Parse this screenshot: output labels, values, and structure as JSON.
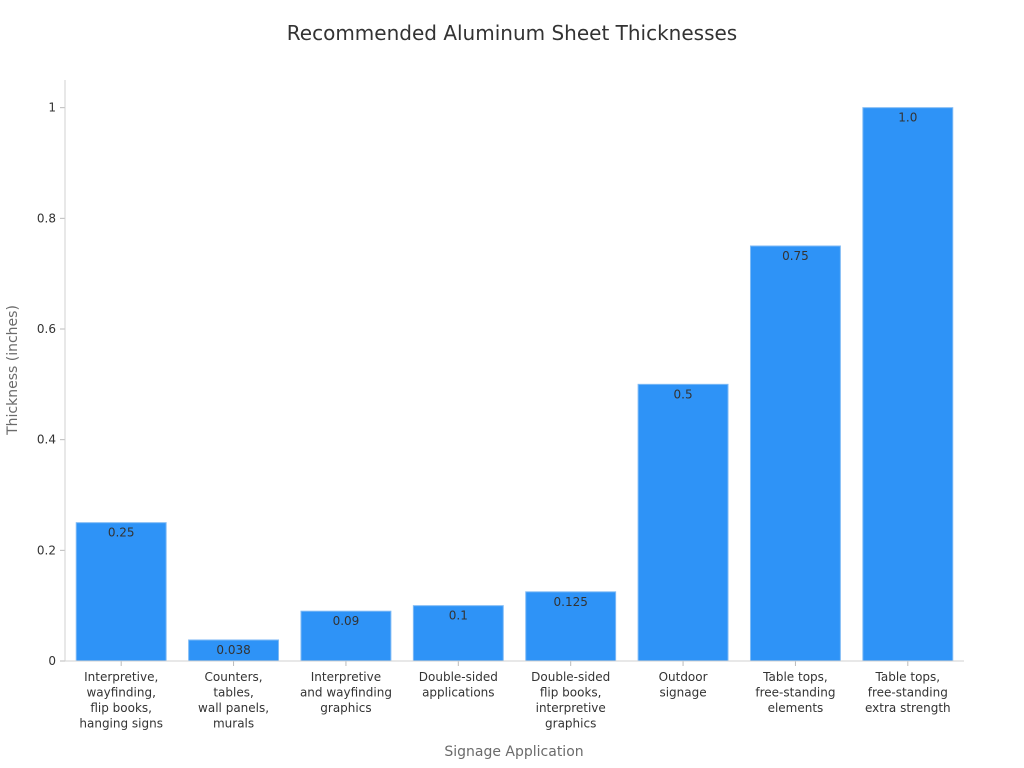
{
  "chart_data": {
    "type": "bar",
    "title": "Recommended Aluminum Sheet Thicknesses",
    "xlabel": "Signage Application",
    "ylabel": "Thickness (inches)",
    "ylim": [
      0,
      1.05
    ],
    "yticks": [
      0,
      0.2,
      0.4,
      0.6,
      0.8,
      1
    ],
    "ytick_labels": [
      "0",
      "0.2",
      "0.4",
      "0.6",
      "0.8",
      "1"
    ],
    "grid": false,
    "bar_color": "#2e93f7",
    "categories": [
      [
        "Interpretive,",
        "wayfinding,",
        "flip books,",
        "hanging signs"
      ],
      [
        "Counters,",
        "tables,",
        "wall panels,",
        "murals"
      ],
      [
        "Interpretive",
        "and wayfinding",
        "graphics"
      ],
      [
        "Double-sided",
        "applications"
      ],
      [
        "Double-sided",
        "flip books,",
        "interpretive",
        "graphics"
      ],
      [
        "Outdoor",
        "signage"
      ],
      [
        "Table tops,",
        "free-standing",
        "elements"
      ],
      [
        "Table tops,",
        "free-standing",
        "extra strength"
      ]
    ],
    "values": [
      0.25,
      0.038,
      0.09,
      0.1,
      0.125,
      0.5,
      0.75,
      1.0
    ],
    "value_labels": [
      "0.25",
      "0.038",
      "0.09",
      "0.1",
      "0.125",
      "0.5",
      "0.75",
      "1.0"
    ]
  }
}
